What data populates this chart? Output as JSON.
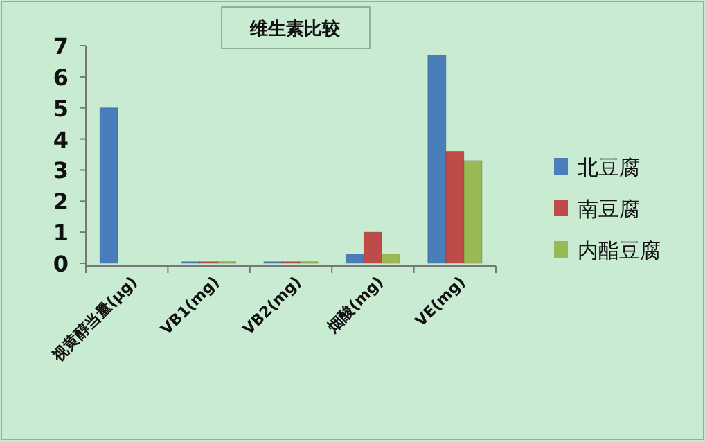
{
  "chart_data": {
    "type": "bar",
    "title": "维生素比较",
    "categories": [
      "视黄醇当量(μg)",
      "VB1(mg)",
      "VB2(mg)",
      "烟酸(mg)",
      "VE(mg)"
    ],
    "series": [
      {
        "name": "北豆腐",
        "color": "#4a7ebb",
        "values": [
          5.0,
          0.05,
          0.05,
          0.3,
          6.7
        ]
      },
      {
        "name": "南豆腐",
        "color": "#be4b48",
        "values": [
          null,
          0.05,
          0.05,
          1.0,
          3.6
        ]
      },
      {
        "name": "内酯豆腐",
        "color": "#98b954",
        "values": [
          null,
          0.05,
          0.05,
          0.3,
          3.3
        ]
      }
    ],
    "ylim": [
      0,
      7
    ],
    "yticks": [
      0,
      1,
      2,
      3,
      4,
      5,
      6,
      7
    ],
    "legend": "right"
  }
}
